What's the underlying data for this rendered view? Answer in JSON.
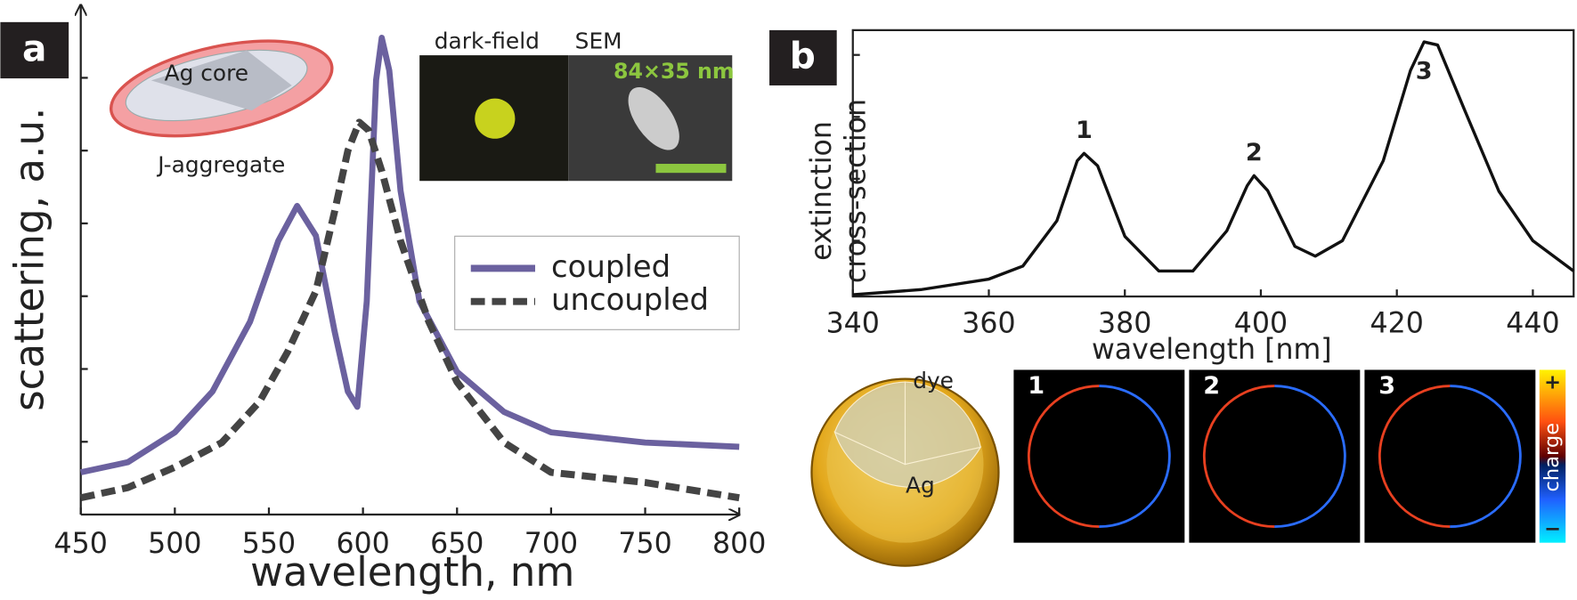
{
  "chart_data": [
    {
      "type": "line",
      "panel": "a",
      "xlabel": "wavelength, nm",
      "ylabel": "scattering, a.u.",
      "x": [
        450,
        475,
        500,
        520,
        540,
        555,
        565,
        575,
        585,
        592,
        597,
        602,
        607,
        610,
        614,
        620,
        630,
        650,
        675,
        700,
        750,
        800
      ],
      "series": [
        {
          "name": "coupled",
          "color": "#6b619f",
          "dash": false,
          "x": [
            450,
            475,
            500,
            520,
            540,
            555,
            565,
            575,
            585,
            592,
            597,
            602,
            607,
            610,
            614,
            620,
            630,
            650,
            675,
            700,
            750,
            800
          ],
          "values": [
            0.58,
            0.72,
            1.13,
            1.69,
            2.65,
            3.76,
            4.24,
            3.83,
            2.51,
            1.69,
            1.48,
            2.93,
            5.97,
            6.55,
            6.1,
            4.45,
            2.93,
            1.96,
            1.41,
            1.13,
            0.99,
            0.93
          ]
        },
        {
          "name": "uncoupled",
          "color": "#444444",
          "dash": true,
          "x": [
            450,
            475,
            500,
            525,
            545,
            560,
            575,
            585,
            592,
            598,
            603,
            610,
            620,
            635,
            650,
            675,
            700,
            750,
            800
          ],
          "values": [
            0.23,
            0.37,
            0.65,
            0.99,
            1.55,
            2.24,
            3.07,
            4.17,
            5.0,
            5.39,
            5.28,
            4.72,
            3.76,
            2.65,
            1.82,
            0.99,
            0.58,
            0.44,
            0.23
          ]
        }
      ],
      "xlim": [
        450,
        800
      ],
      "xticks": [
        450,
        500,
        550,
        600,
        650,
        700,
        750,
        800
      ],
      "ylim": [
        0,
        7
      ],
      "yticks": [
        1,
        2,
        3,
        4,
        5,
        6
      ],
      "legend": "right",
      "annotations": {
        "core": "Ag core",
        "shell": "J-aggregate",
        "darkfield": "dark-field",
        "sem": "SEM",
        "size": "84×35 nm"
      }
    },
    {
      "type": "line",
      "panel": "b",
      "xlabel": "wavelength [nm]",
      "ylabel": [
        "extinction",
        "cross-section"
      ],
      "series": [
        {
          "color": "#111111",
          "x": [
            340,
            350,
            360,
            365,
            370,
            373,
            374,
            376,
            380,
            385,
            390,
            395,
            398,
            399,
            401,
            405,
            408,
            412,
            418,
            422,
            424,
            426,
            430,
            435,
            440,
            446
          ],
          "values": [
            0.13,
            0.21,
            0.38,
            0.59,
            1.32,
            2.29,
            2.41,
            2.21,
            1.07,
            0.51,
            0.51,
            1.16,
            1.89,
            2.05,
            1.81,
            0.91,
            0.75,
            1.0,
            2.29,
            3.75,
            4.21,
            4.16,
            3.1,
            1.8,
            1.0,
            0.51
          ]
        }
      ],
      "xlim": [
        340,
        446
      ],
      "xticks": [
        340,
        360,
        380,
        400,
        420,
        440
      ],
      "ylim": [
        0.1,
        4.4
      ],
      "yticks": [
        1,
        2,
        3,
        4
      ],
      "peaks": [
        {
          "label": "1",
          "x": 374,
          "y": 2.41
        },
        {
          "label": "2",
          "x": 399,
          "y": 2.05
        },
        {
          "label": "3",
          "x": 424,
          "y": 4.21
        }
      ],
      "annotations": {
        "shell": "dye",
        "core": "Ag",
        "maps": [
          "1",
          "2",
          "3"
        ],
        "plus": "+",
        "colorbar": "charge",
        "minus": "−"
      }
    }
  ]
}
